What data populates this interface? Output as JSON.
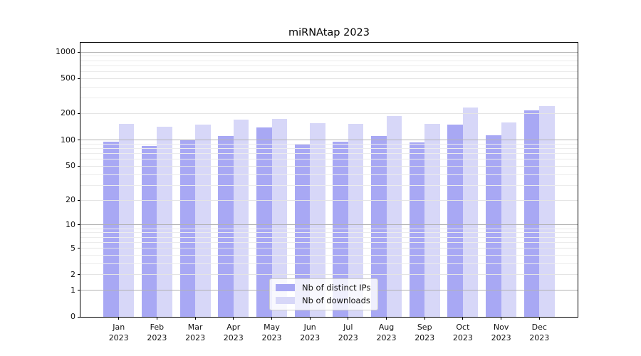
{
  "title": "miRNAtap 2023",
  "chart_data": {
    "type": "bar",
    "title": "miRNAtap 2023",
    "categories": [
      "Jan\n2023",
      "Feb\n2023",
      "Mar\n2023",
      "Apr\n2023",
      "May\n2023",
      "Jun\n2023",
      "Jul\n2023",
      "Aug\n2023",
      "Sep\n2023",
      "Oct\n2023",
      "Nov\n2023",
      "Dec\n2023"
    ],
    "series": [
      {
        "name": "Nb of distinct IPs",
        "color": "#a8a8f4",
        "values": [
          95,
          85,
          99,
          110,
          139,
          91,
          95,
          110,
          94,
          151,
          112,
          217
        ]
      },
      {
        "name": "Nb of downloads",
        "color": "#d7d7f8",
        "values": [
          153,
          141,
          150,
          172,
          173,
          155,
          152,
          188,
          152,
          235,
          157,
          243
        ]
      }
    ],
    "xlabel": "",
    "ylabel": "",
    "yscale": "log1p",
    "ylim": [
      0,
      1273
    ],
    "yticks": [
      0,
      1,
      2,
      5,
      10,
      20,
      50,
      100,
      200,
      500,
      1000
    ],
    "yticks_power_of_ten": [
      1,
      10,
      100,
      1000
    ],
    "yticks_minor": [
      3,
      4,
      6,
      7,
      8,
      9,
      30,
      40,
      60,
      70,
      80,
      90,
      300,
      400,
      600,
      700,
      800,
      900
    ],
    "grid": true,
    "legend_position": "lower center",
    "bar_group_width": 0.8
  },
  "legend": {
    "items": [
      {
        "label": "Nb of distinct IPs",
        "color": "#a8a8f4"
      },
      {
        "label": "Nb of downloads",
        "color": "#d7d7f8"
      }
    ]
  },
  "colors": {
    "background": "#ffffff",
    "spine": "#000000",
    "grid_major": "#b2b2b2",
    "grid_minor": "#ececec",
    "tick_text": "#111111"
  }
}
